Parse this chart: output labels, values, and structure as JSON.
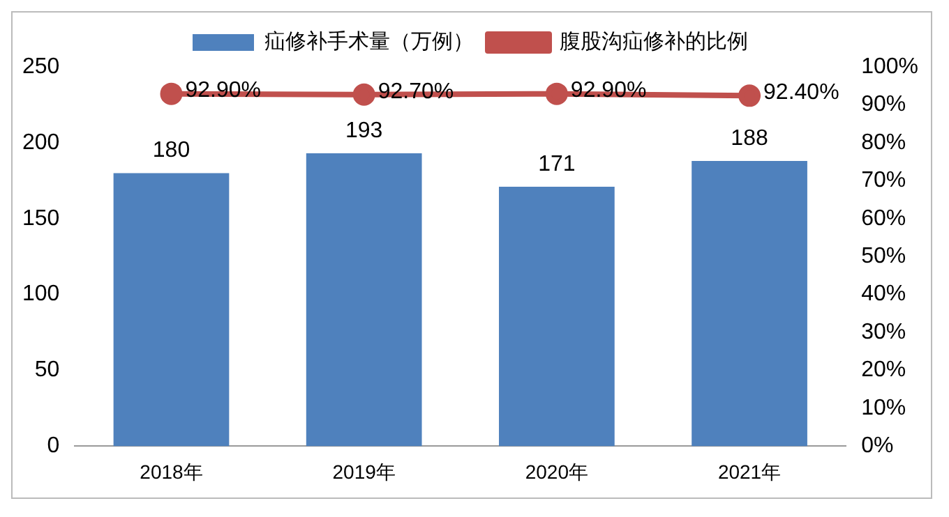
{
  "chart_data": {
    "type": "bar",
    "categories": [
      "2018年",
      "2019年",
      "2020年",
      "2021年"
    ],
    "series": [
      {
        "name": "疝修补手术量（万例）",
        "color": "#4f81bd",
        "values": [
          180,
          193,
          171,
          188
        ],
        "value_labels": [
          "180",
          "193",
          "171",
          "188"
        ]
      },
      {
        "name": "腹股沟疝修补的比例",
        "type": "line",
        "axis": "y2",
        "color": "#c0504d",
        "values": [
          92.9,
          92.7,
          92.9,
          92.4
        ],
        "value_labels": [
          "92.90%",
          "92.70%",
          "92.90%",
          "92.40%"
        ],
        "marker": "circle"
      }
    ],
    "ylim": [
      0,
      250
    ],
    "yticks": [
      0,
      50,
      100,
      150,
      200,
      250
    ],
    "y2lim": [
      0,
      100
    ],
    "y2ticks": [
      {
        "value": 0,
        "label": "0%"
      },
      {
        "value": 10,
        "label": "10%"
      },
      {
        "value": 20,
        "label": "20%"
      },
      {
        "value": 30,
        "label": "30%"
      },
      {
        "value": 40,
        "label": "40%"
      },
      {
        "value": 50,
        "label": "50%"
      },
      {
        "value": 60,
        "label": "60%"
      },
      {
        "value": 70,
        "label": "70%"
      },
      {
        "value": 80,
        "label": "80%"
      },
      {
        "value": 90,
        "label": "90%"
      },
      {
        "value": 100,
        "label": "100%"
      }
    ],
    "grid": false,
    "legend": "top"
  }
}
